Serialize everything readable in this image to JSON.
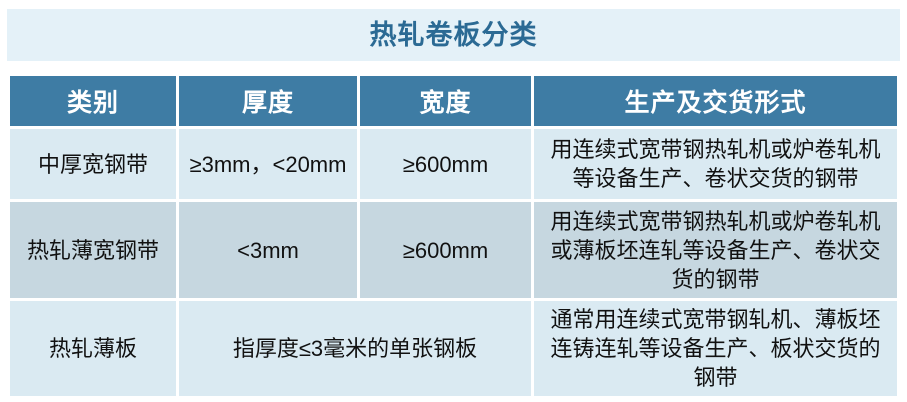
{
  "title": "热轧卷板分类",
  "table": {
    "headers": [
      "类别",
      "厚度",
      "宽度",
      "生产及交货形式"
    ],
    "rows": [
      {
        "category": "中厚宽钢带",
        "thickness": "≥3mm，<20mm",
        "width": "≥600mm",
        "delivery": "用连续式宽带钢热轧机或炉卷轧机等设备生产、卷状交货的钢带"
      },
      {
        "category": "热轧薄宽钢带",
        "thickness": "<3mm",
        "width": "≥600mm",
        "delivery": "用连续式宽带钢热轧机或炉卷轧机或薄板坯连轧等设备生产、卷状交货的钢带"
      },
      {
        "category": "热轧薄板",
        "thickness_width": "指厚度≤3毫米的单张钢板",
        "delivery": "通常用连续式宽带钢轧机、薄板坯连铸连轧等设备生产、板状交货的钢带"
      }
    ]
  },
  "colors": {
    "title_bg": "#e4f1f8",
    "title_text": "#2b6a94",
    "header_bg": "#3e7ca4",
    "header_text": "#ffffff",
    "row_light": "#daeaf2",
    "row_dark": "#c6d7e0",
    "body_text": "#111111",
    "page_bg": "#ffffff"
  }
}
